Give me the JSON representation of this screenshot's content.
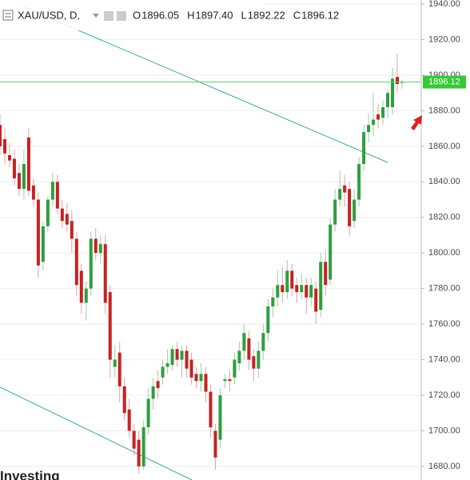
{
  "chart_data": {
    "type": "candlestick",
    "header": {
      "symbol": "XAU/USD, D,",
      "items": [
        {
          "key": "O",
          "text": "1896.05"
        },
        {
          "key": "H",
          "text": "1897.40"
        },
        {
          "key": "L",
          "text": "1892.22"
        },
        {
          "key": "C",
          "text": "1896.12"
        }
      ]
    },
    "watermark": "Investing",
    "up_color": "#2e9e3e",
    "down_color": "#c62222",
    "grid": true,
    "ylim": [
      1680,
      1940
    ],
    "yticks": [
      {
        "value": 1680,
        "label": "1680.00"
      },
      {
        "value": 1700,
        "label": "1700.00"
      },
      {
        "value": 1720,
        "label": "1720.00"
      },
      {
        "value": 1740,
        "label": "1740.00"
      },
      {
        "value": 1760,
        "label": "1760.00"
      },
      {
        "value": 1780,
        "label": "1780.00"
      },
      {
        "value": 1800,
        "label": "1800.00"
      },
      {
        "value": 1820,
        "label": "1820.00"
      },
      {
        "value": 1840,
        "label": "1840.00"
      },
      {
        "value": 1860,
        "label": "1860.00"
      },
      {
        "value": 1880,
        "label": "1880.00"
      },
      {
        "value": 1900,
        "label": "1900.00"
      },
      {
        "value": 1920,
        "label": "1920.00"
      },
      {
        "value": 1940,
        "label": "1940.00"
      }
    ],
    "last_price": {
      "value": 1896.12,
      "label": "1896.12"
    },
    "open": [
      1872,
      1864,
      1855,
      1853,
      1845,
      1836,
      1865,
      1838,
      1830,
      1795,
      1815,
      1830,
      1840,
      1825,
      1822,
      1818,
      1808,
      1790,
      1772,
      1780,
      1808,
      1800,
      1805,
      1778,
      1736,
      1744,
      1725,
      1712,
      1700,
      1695,
      1680,
      1702,
      1718,
      1728,
      1730,
      1736,
      1737,
      1746,
      1740,
      1745,
      1740,
      1732,
      1728,
      1732,
      1722,
      1700,
      1695,
      1728,
      1729,
      1730,
      1738,
      1745,
      1752,
      1742,
      1735,
      1745,
      1755,
      1770,
      1775,
      1782,
      1778,
      1790,
      1782,
      1778,
      1782,
      1775,
      1780,
      1768,
      1795,
      1785,
      1816,
      1830,
      1838,
      1836,
      1818,
      1830,
      1850,
      1868,
      1872,
      1878,
      1876,
      1882,
      1882,
      1899,
      1896.05
    ],
    "high": [
      1878,
      1870,
      1862,
      1858,
      1850,
      1858,
      1870,
      1842,
      1834,
      1818,
      1832,
      1845,
      1844,
      1830,
      1828,
      1824,
      1812,
      1794,
      1784,
      1812,
      1814,
      1810,
      1810,
      1782,
      1748,
      1750,
      1730,
      1718,
      1704,
      1700,
      1706,
      1724,
      1730,
      1734,
      1740,
      1746,
      1748,
      1750,
      1748,
      1748,
      1744,
      1736,
      1738,
      1736,
      1726,
      1704,
      1724,
      1732,
      1734,
      1744,
      1750,
      1760,
      1756,
      1746,
      1750,
      1760,
      1774,
      1780,
      1790,
      1792,
      1796,
      1794,
      1786,
      1788,
      1786,
      1786,
      1784,
      1800,
      1802,
      1820,
      1836,
      1846,
      1844,
      1840,
      1836,
      1854,
      1872,
      1878,
      1890,
      1884,
      1886,
      1892,
      1904,
      1912,
      1897.4
    ],
    "low": [
      1855,
      1850,
      1848,
      1838,
      1832,
      1830,
      1832,
      1826,
      1786,
      1790,
      1812,
      1826,
      1822,
      1814,
      1812,
      1800,
      1776,
      1766,
      1762,
      1776,
      1796,
      1794,
      1766,
      1730,
      1730,
      1716,
      1706,
      1696,
      1686,
      1676,
      1678,
      1698,
      1712,
      1718,
      1726,
      1732,
      1734,
      1736,
      1730,
      1730,
      1726,
      1724,
      1722,
      1716,
      1696,
      1678,
      1690,
      1724,
      1722,
      1726,
      1734,
      1740,
      1734,
      1728,
      1730,
      1740,
      1750,
      1764,
      1770,
      1772,
      1774,
      1776,
      1772,
      1774,
      1766,
      1770,
      1760,
      1764,
      1776,
      1782,
      1812,
      1826,
      1826,
      1810,
      1814,
      1826,
      1846,
      1862,
      1866,
      1870,
      1872,
      1876,
      1878,
      1890,
      1892.22
    ],
    "close": [
      1860,
      1856,
      1852,
      1842,
      1836,
      1850,
      1835,
      1830,
      1793,
      1815,
      1830,
      1840,
      1825,
      1818,
      1816,
      1808,
      1782,
      1772,
      1780,
      1808,
      1800,
      1805,
      1772,
      1740,
      1740,
      1725,
      1710,
      1700,
      1690,
      1680,
      1702,
      1718,
      1725,
      1724,
      1736,
      1738,
      1746,
      1740,
      1745,
      1735,
      1730,
      1728,
      1732,
      1722,
      1702,
      1685,
      1720,
      1729,
      1728,
      1740,
      1745,
      1755,
      1740,
      1735,
      1745,
      1755,
      1770,
      1775,
      1782,
      1778,
      1790,
      1780,
      1778,
      1782,
      1775,
      1782,
      1767,
      1795,
      1782,
      1816,
      1830,
      1836,
      1834,
      1815,
      1830,
      1850,
      1868,
      1872,
      1875,
      1875,
      1882,
      1890,
      1898,
      1895,
      1896.12
    ]
  }
}
